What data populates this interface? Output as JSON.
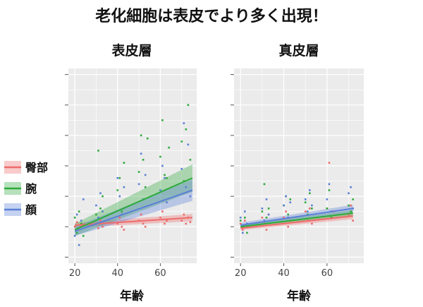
{
  "title": "老化細胞は表皮でより多く出現！",
  "colors": {
    "panel_bg": "#ebebeb",
    "grid": "#ffffff",
    "arm_upper": "#ee6b6b",
    "forearm": "#2eaa3c",
    "face": "#5a7fd6"
  },
  "legend": {
    "items": [
      {
        "label": "臀部",
        "color": "#ee6b6b"
      },
      {
        "label": "腕",
        "color": "#2eaa3c"
      },
      {
        "label": "顔",
        "color": "#5a7fd6"
      }
    ]
  },
  "chart_data": [
    {
      "type": "scatter",
      "title": "表皮層",
      "xlabel": "年齢",
      "ylabel": "",
      "xlim": [
        17,
        77
      ],
      "ylim": [
        -1.2,
        5.2
      ],
      "xticks": [
        20,
        40,
        60
      ],
      "grid": true,
      "legend_position": "left",
      "series": [
        {
          "name": "臀部",
          "fit": {
            "x": [
              20,
              75
            ],
            "y": [
              0.05,
              0.3
            ],
            "band": [
              0.08,
              0.12
            ]
          },
          "points": [
            [
              20,
              0.0
            ],
            [
              21,
              0.15
            ],
            [
              22,
              -0.1
            ],
            [
              23,
              0.05
            ],
            [
              30,
              0.1
            ],
            [
              31,
              -0.05
            ],
            [
              32,
              0.2
            ],
            [
              33,
              0.0
            ],
            [
              40,
              0.1
            ],
            [
              41,
              0.3
            ],
            [
              42,
              0.0
            ],
            [
              43,
              -0.1
            ],
            [
              50,
              0.2
            ],
            [
              51,
              0.4
            ],
            [
              52,
              0.1
            ],
            [
              53,
              0.0
            ],
            [
              60,
              0.3
            ],
            [
              61,
              0.5
            ],
            [
              62,
              0.1
            ],
            [
              63,
              0.2
            ],
            [
              70,
              0.2
            ],
            [
              71,
              0.4
            ],
            [
              72,
              0.1
            ],
            [
              73,
              0.3
            ],
            [
              74,
              0.15
            ]
          ]
        },
        {
          "name": "腕",
          "fit": {
            "x": [
              20,
              75
            ],
            "y": [
              -0.1,
              1.6
            ],
            "band": [
              0.2,
              0.45
            ]
          },
          "points": [
            [
              20,
              0.3
            ],
            [
              21,
              -0.2
            ],
            [
              22,
              0.5
            ],
            [
              23,
              0.1
            ],
            [
              24,
              -0.3
            ],
            [
              30,
              0.4
            ],
            [
              31,
              2.5
            ],
            [
              32,
              0.6
            ],
            [
              33,
              1.0
            ],
            [
              40,
              1.2
            ],
            [
              41,
              1.6
            ],
            [
              42,
              0.5
            ],
            [
              43,
              2.1
            ],
            [
              50,
              1.8
            ],
            [
              51,
              3.0
            ],
            [
              52,
              2.2
            ],
            [
              53,
              1.3
            ],
            [
              54,
              2.9
            ],
            [
              60,
              2.3
            ],
            [
              61,
              3.5
            ],
            [
              62,
              1.7
            ],
            [
              63,
              1.6
            ],
            [
              64,
              2.6
            ],
            [
              70,
              2.8
            ],
            [
              71,
              1.5
            ],
            [
              72,
              3.2
            ],
            [
              73,
              4.0
            ],
            [
              74,
              2.2
            ]
          ]
        },
        {
          "name": "顔",
          "fit": {
            "x": [
              20,
              75
            ],
            "y": [
              -0.15,
              1.2
            ],
            "band": [
              0.15,
              0.35
            ]
          },
          "points": [
            [
              20,
              -0.3
            ],
            [
              21,
              0.4
            ],
            [
              22,
              -0.6
            ],
            [
              23,
              0.2
            ],
            [
              24,
              0.9
            ],
            [
              30,
              0.7
            ],
            [
              31,
              0.3
            ],
            [
              32,
              1.1
            ],
            [
              33,
              0.5
            ],
            [
              40,
              1.6
            ],
            [
              41,
              1.0
            ],
            [
              42,
              0.4
            ],
            [
              43,
              1.3
            ],
            [
              50,
              1.4
            ],
            [
              51,
              2.4
            ],
            [
              52,
              0.9
            ],
            [
              53,
              1.7
            ],
            [
              60,
              1.2
            ],
            [
              61,
              2.0
            ],
            [
              62,
              1.6
            ],
            [
              63,
              0.8
            ],
            [
              70,
              1.9
            ],
            [
              71,
              3.4
            ],
            [
              72,
              1.3
            ],
            [
              73,
              2.7
            ],
            [
              74,
              1.0
            ]
          ]
        }
      ]
    },
    {
      "type": "scatter",
      "title": "真皮層",
      "xlabel": "年齢",
      "ylabel": "",
      "xlim": [
        17,
        77
      ],
      "ylim": [
        -1.2,
        5.2
      ],
      "xticks": [
        20,
        40,
        60
      ],
      "grid": true,
      "series": [
        {
          "name": "臀部",
          "fit": {
            "x": [
              20,
              72
            ],
            "y": [
              -0.05,
              0.35
            ],
            "band": [
              0.06,
              0.1
            ]
          },
          "points": [
            [
              20,
              0.1
            ],
            [
              21,
              -0.1
            ],
            [
              22,
              0.2
            ],
            [
              23,
              0.0
            ],
            [
              30,
              0.3
            ],
            [
              31,
              0.1
            ],
            [
              32,
              -0.1
            ],
            [
              33,
              0.4
            ],
            [
              40,
              0.3
            ],
            [
              41,
              0.5
            ],
            [
              42,
              0.0
            ],
            [
              43,
              0.2
            ],
            [
              50,
              0.5
            ],
            [
              51,
              0.2
            ],
            [
              52,
              0.6
            ],
            [
              53,
              0.1
            ],
            [
              60,
              0.6
            ],
            [
              61,
              2.1
            ],
            [
              62,
              0.3
            ],
            [
              63,
              0.5
            ],
            [
              70,
              0.4
            ],
            [
              71,
              0.7
            ],
            [
              72,
              0.2
            ]
          ]
        },
        {
          "name": "腕",
          "fit": {
            "x": [
              20,
              72
            ],
            "y": [
              0.0,
              0.45
            ],
            "band": [
              0.06,
              0.1
            ]
          },
          "points": [
            [
              20,
              0.2
            ],
            [
              21,
              0.0
            ],
            [
              22,
              0.3
            ],
            [
              23,
              -0.2
            ],
            [
              30,
              0.5
            ],
            [
              31,
              1.4
            ],
            [
              32,
              0.3
            ],
            [
              33,
              0.6
            ],
            [
              40,
              0.7
            ],
            [
              41,
              1.0
            ],
            [
              42,
              0.4
            ],
            [
              43,
              0.9
            ],
            [
              50,
              0.8
            ],
            [
              51,
              0.4
            ],
            [
              52,
              1.1
            ],
            [
              53,
              0.6
            ],
            [
              60,
              0.6
            ],
            [
              61,
              1.2
            ],
            [
              62,
              0.3
            ],
            [
              70,
              0.7
            ],
            [
              71,
              0.5
            ],
            [
              72,
              0.9
            ]
          ]
        },
        {
          "name": "顔",
          "fit": {
            "x": [
              20,
              72
            ],
            "y": [
              0.05,
              0.6
            ],
            "band": [
              0.08,
              0.12
            ]
          },
          "points": [
            [
              20,
              0.3
            ],
            [
              21,
              -0.2
            ],
            [
              22,
              0.5
            ],
            [
              23,
              0.1
            ],
            [
              30,
              0.6
            ],
            [
              31,
              0.2
            ],
            [
              32,
              0.9
            ],
            [
              33,
              0.4
            ],
            [
              40,
              0.7
            ],
            [
              41,
              1.0
            ],
            [
              42,
              0.3
            ],
            [
              43,
              0.8
            ],
            [
              50,
              0.9
            ],
            [
              51,
              0.5
            ],
            [
              52,
              1.2
            ],
            [
              53,
              0.7
            ],
            [
              60,
              0.9
            ],
            [
              61,
              1.4
            ],
            [
              62,
              0.5
            ],
            [
              70,
              1.1
            ],
            [
              71,
              1.3
            ],
            [
              72,
              0.6
            ]
          ]
        }
      ]
    }
  ]
}
